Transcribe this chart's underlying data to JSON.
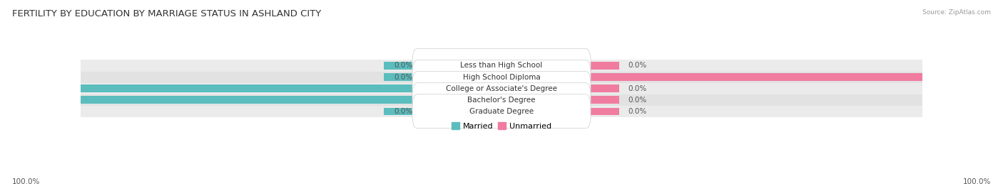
{
  "title": "FERTILITY BY EDUCATION BY MARRIAGE STATUS IN ASHLAND CITY",
  "source": "Source: ZipAtlas.com",
  "categories": [
    "Less than High School",
    "High School Diploma",
    "College or Associate's Degree",
    "Bachelor's Degree",
    "Graduate Degree"
  ],
  "married_values": [
    0.0,
    0.0,
    100.0,
    100.0,
    0.0
  ],
  "unmarried_values": [
    0.0,
    100.0,
    0.0,
    0.0,
    0.0
  ],
  "married_color": "#5BBDBE",
  "unmarried_color": "#F07CA0",
  "row_bg_even": "#EBEBEB",
  "row_bg_odd": "#E2E2E2",
  "label_bg_color": "#FFFFFF",
  "text_color_dark": "#444444",
  "text_color_light": "#FFFFFF",
  "text_color_pct": "#555555",
  "axis_label_left": "100.0%",
  "axis_label_right": "100.0%",
  "title_fontsize": 9.5,
  "label_fontsize": 7.5,
  "tick_fontsize": 7.5,
  "source_fontsize": 6.5
}
